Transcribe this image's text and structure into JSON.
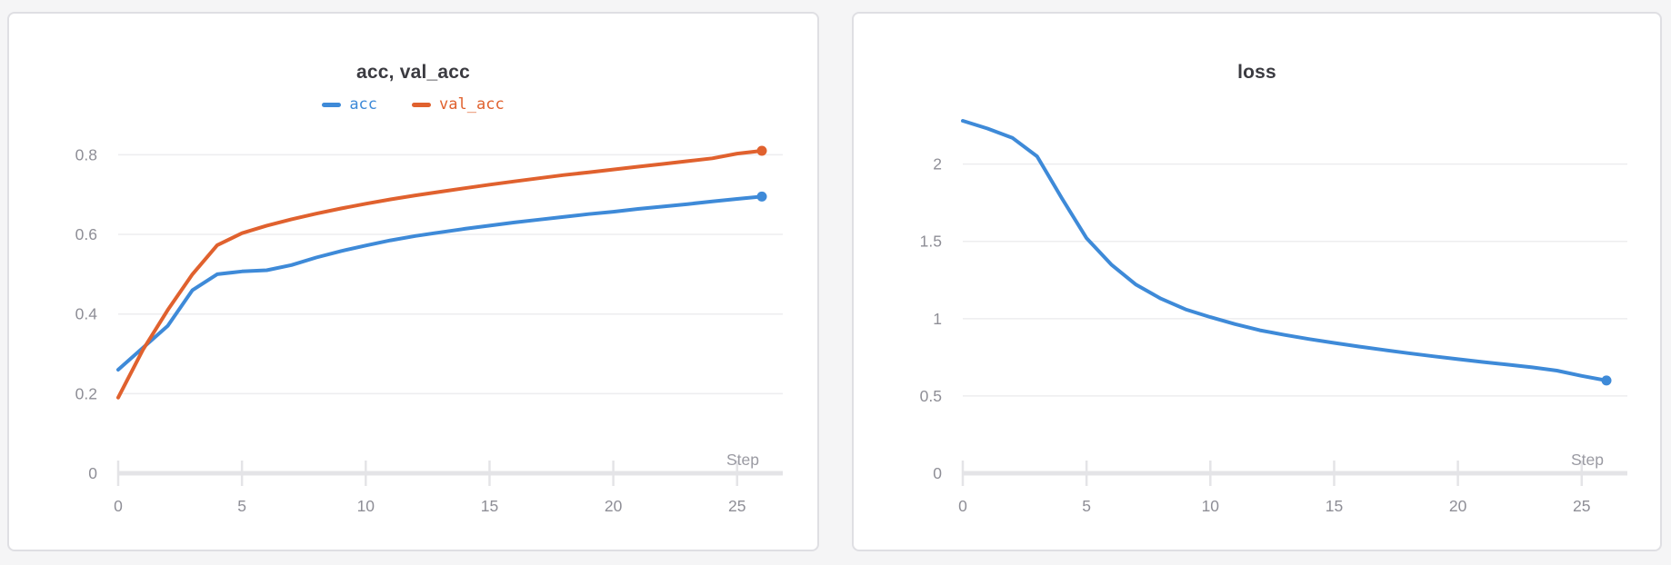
{
  "page": {
    "background": "#f5f5f6",
    "card_background": "#ffffff",
    "card_border_color": "#dfdfe3",
    "grid_color": "#ededef",
    "axis_bar_color": "#e4e4e7",
    "tick_label_color": "#8e8e96",
    "step_label_color": "#9a9aa2",
    "title_color": "#3b3b41"
  },
  "chart_data": [
    {
      "type": "line",
      "title": "acc, val_acc",
      "xlabel": "Step",
      "ylabel": "",
      "grid": true,
      "legend_position": "top",
      "xlim": [
        0,
        26
      ],
      "ylim": [
        0,
        0.81
      ],
      "xticks": [
        0,
        5,
        10,
        15,
        20,
        25
      ],
      "yticks": [
        0,
        0.2,
        0.4,
        0.6,
        0.8
      ],
      "x": [
        0,
        1,
        2,
        3,
        4,
        5,
        6,
        7,
        8,
        9,
        10,
        11,
        12,
        13,
        14,
        15,
        16,
        17,
        18,
        19,
        20,
        21,
        22,
        23,
        24,
        25,
        26
      ],
      "series": [
        {
          "name": "acc",
          "color": "#3e8ad8",
          "endpoint_dot": true,
          "values": [
            0.26,
            0.315,
            0.37,
            0.46,
            0.5,
            0.507,
            0.51,
            0.523,
            0.542,
            0.558,
            0.572,
            0.585,
            0.596,
            0.605,
            0.614,
            0.622,
            0.63,
            0.637,
            0.644,
            0.651,
            0.657,
            0.664,
            0.67,
            0.676,
            0.683,
            0.689,
            0.695
          ]
        },
        {
          "name": "val_acc",
          "color": "#e0612e",
          "endpoint_dot": true,
          "values": [
            0.19,
            0.31,
            0.41,
            0.5,
            0.573,
            0.603,
            0.622,
            0.638,
            0.652,
            0.665,
            0.677,
            0.688,
            0.698,
            0.707,
            0.716,
            0.725,
            0.733,
            0.741,
            0.749,
            0.756,
            0.763,
            0.77,
            0.777,
            0.784,
            0.791,
            0.803,
            0.81
          ]
        }
      ]
    },
    {
      "type": "line",
      "title": "loss",
      "xlabel": "Step",
      "ylabel": "",
      "grid": true,
      "legend_position": "none",
      "xlim": [
        0,
        26
      ],
      "ylim": [
        0,
        2.28
      ],
      "xticks": [
        0,
        5,
        10,
        15,
        20,
        25
      ],
      "yticks": [
        0,
        0.5,
        1,
        1.5,
        2
      ],
      "x": [
        0,
        1,
        2,
        3,
        4,
        5,
        6,
        7,
        8,
        9,
        10,
        11,
        12,
        13,
        14,
        15,
        16,
        17,
        18,
        19,
        20,
        21,
        22,
        23,
        24,
        25,
        26
      ],
      "series": [
        {
          "name": "loss",
          "color": "#3e8ad8",
          "endpoint_dot": true,
          "values": [
            2.28,
            2.23,
            2.17,
            2.05,
            1.78,
            1.52,
            1.35,
            1.22,
            1.13,
            1.06,
            1.01,
            0.965,
            0.925,
            0.895,
            0.868,
            0.843,
            0.82,
            0.798,
            0.777,
            0.757,
            0.738,
            0.72,
            0.703,
            0.685,
            0.664,
            0.63,
            0.6
          ]
        }
      ]
    }
  ]
}
